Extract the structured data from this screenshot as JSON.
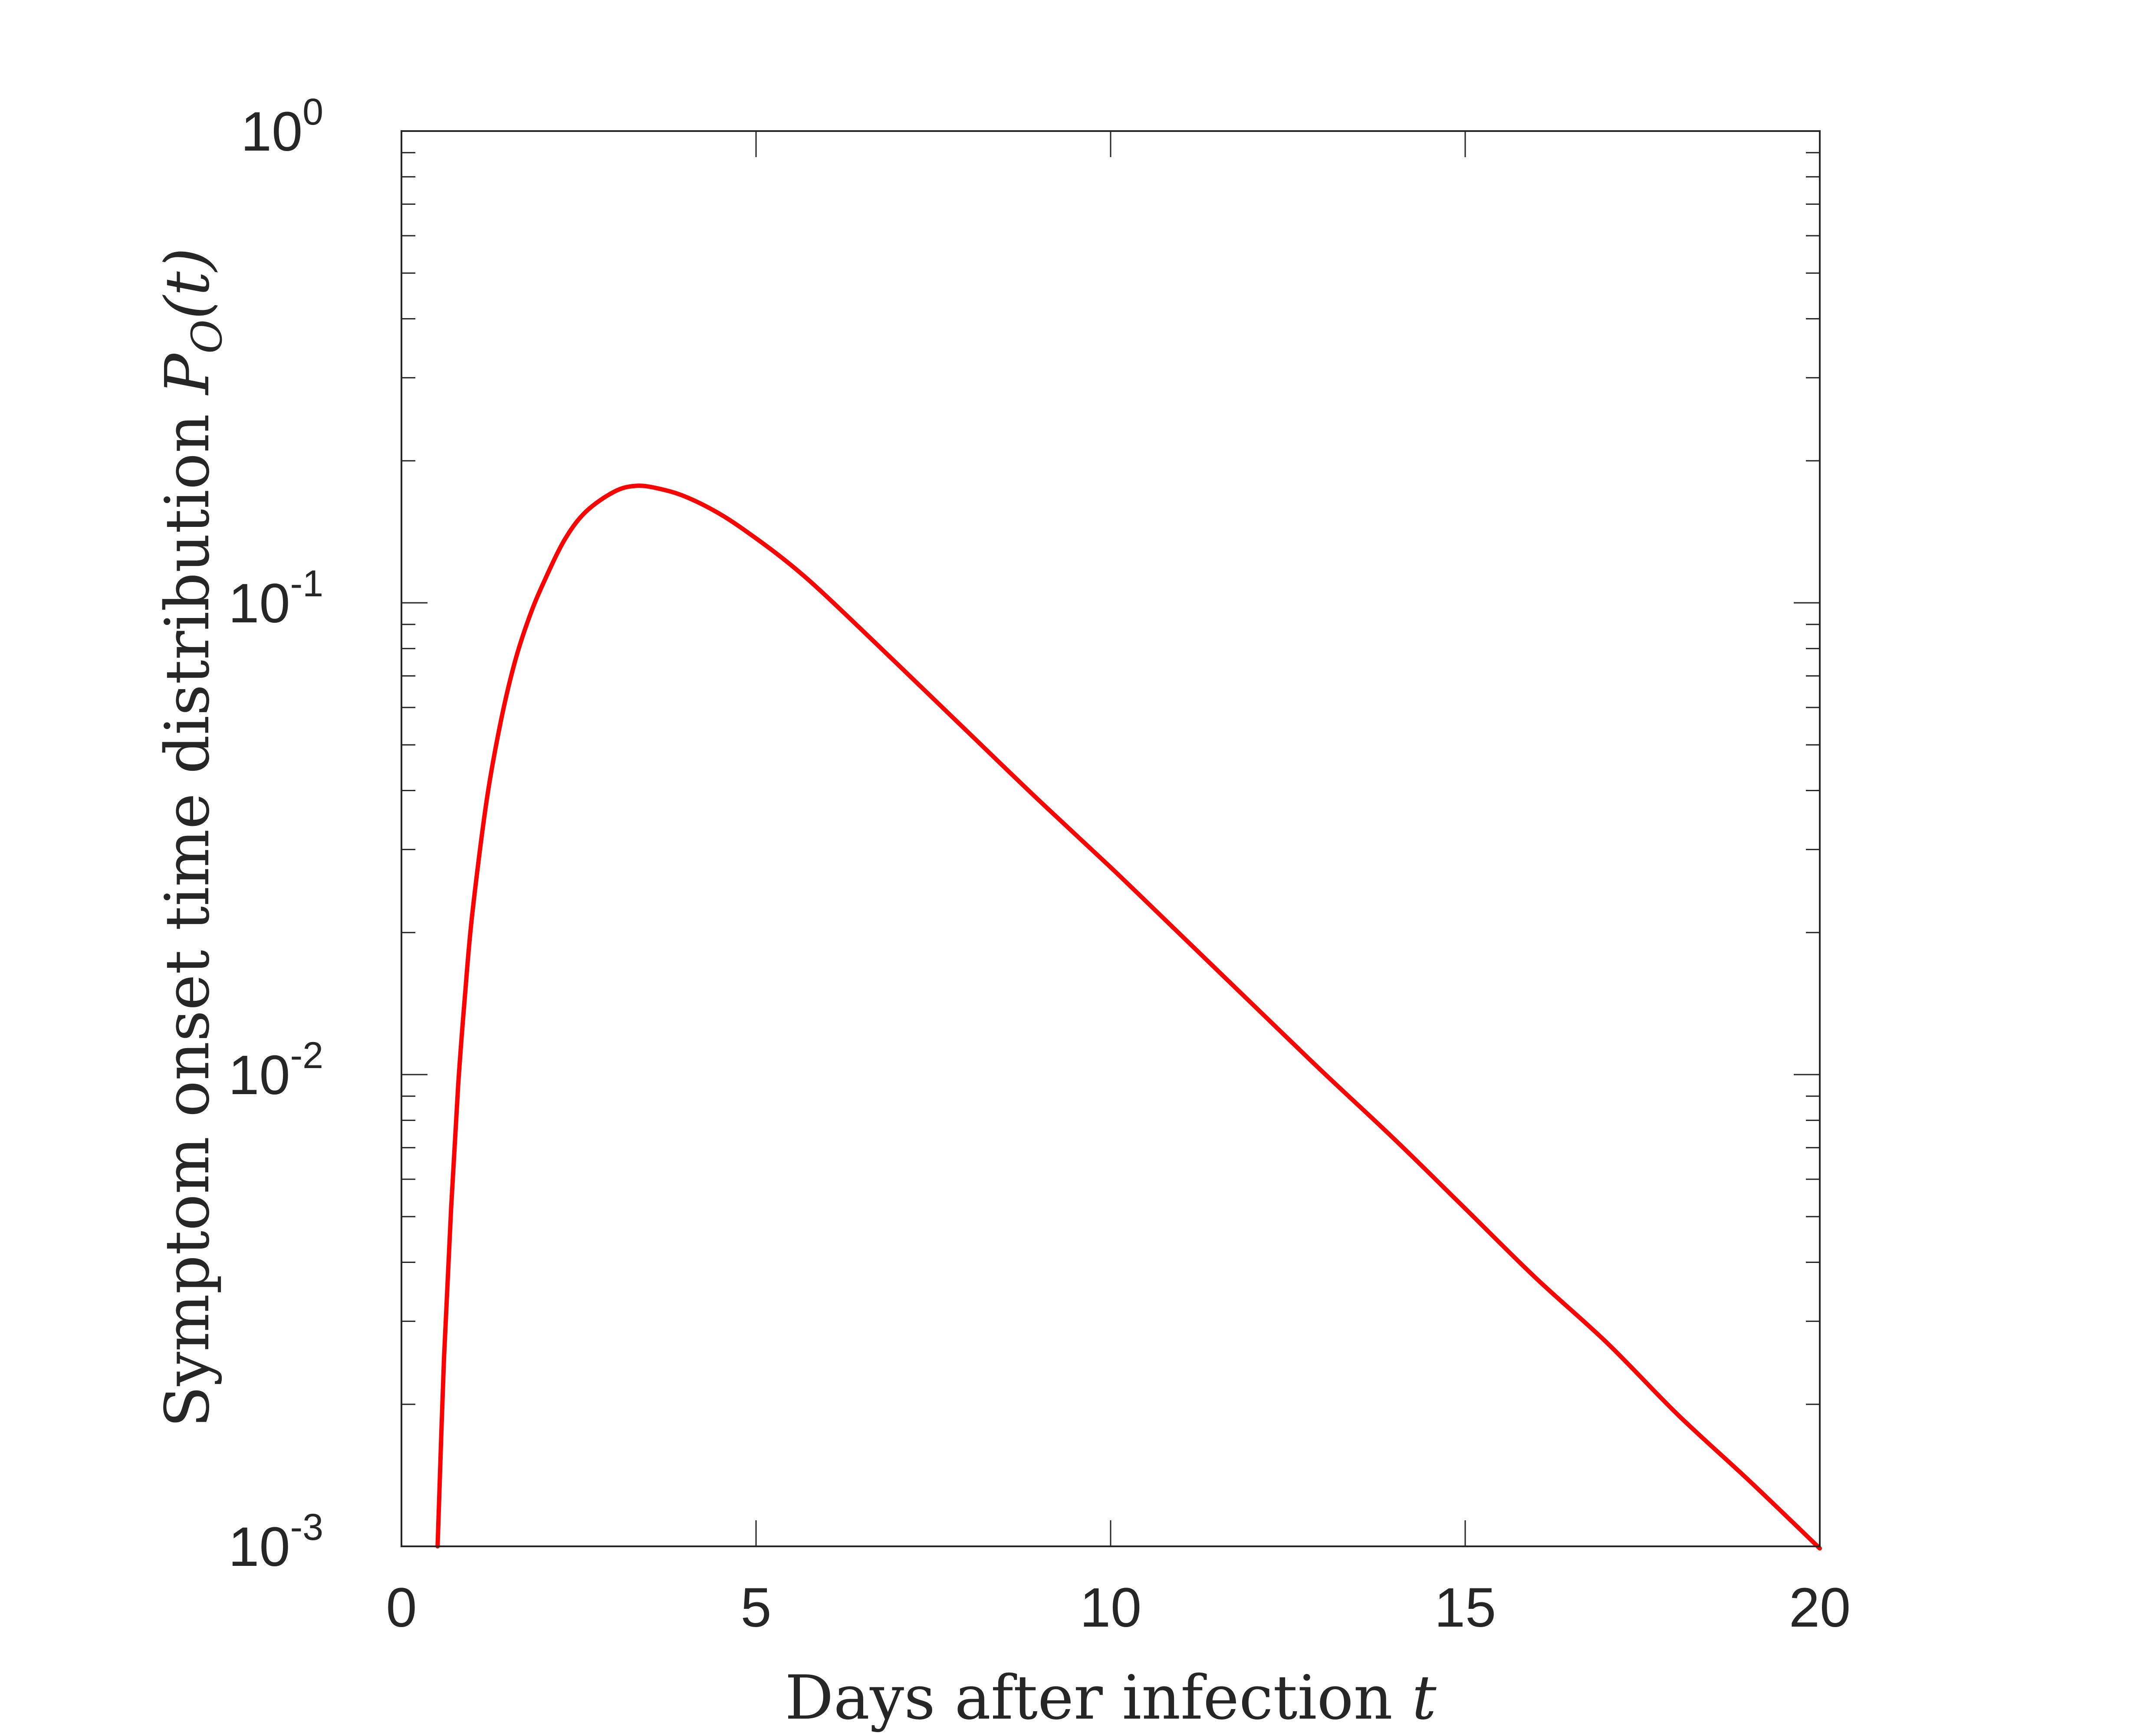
{
  "chart_data": {
    "type": "line",
    "title": "",
    "xlabel": "Days after infection",
    "xlabel_var": "t",
    "ylabel": "Symptom onset time distribution",
    "ylabel_var": "P",
    "ylabel_sub": "O",
    "ylabel_arg": "(t)",
    "xlim": [
      0,
      20
    ],
    "ylim": [
      0.001,
      1
    ],
    "yscale": "log",
    "grid": false,
    "x_ticks": [
      "0",
      "5",
      "10",
      "15",
      "20"
    ],
    "y_ticks": [
      {
        "base": "10",
        "exp": "0"
      },
      {
        "base": "10",
        "exp": "-1"
      },
      {
        "base": "10",
        "exp": "-2"
      },
      {
        "base": "10",
        "exp": "-3"
      }
    ],
    "series": [
      {
        "color": "#ff0000",
        "x": [
          0.51,
          0.6,
          0.7,
          0.8,
          0.9,
          1.0,
          1.2,
          1.4,
          1.6,
          1.8,
          2.0,
          2.3,
          2.6,
          3.0,
          3.3,
          3.6,
          4.0,
          4.5,
          5.0,
          5.5,
          6.0,
          7.0,
          8.0,
          9.0,
          10.0,
          11.0,
          12.0,
          13.0,
          14.0,
          15.0,
          16.0,
          17.0,
          18.0,
          19.0,
          20.0
        ],
        "y": [
          0.001,
          0.0025,
          0.0052,
          0.0095,
          0.015,
          0.022,
          0.038,
          0.056,
          0.075,
          0.093,
          0.11,
          0.136,
          0.156,
          0.172,
          0.177,
          0.175,
          0.168,
          0.154,
          0.137,
          0.12,
          0.103,
          0.074,
          0.053,
          0.038,
          0.0275,
          0.0197,
          0.0141,
          0.0101,
          0.0073,
          0.0052,
          0.0037,
          0.0027,
          0.0019,
          0.00138,
          0.00099
        ]
      }
    ]
  }
}
